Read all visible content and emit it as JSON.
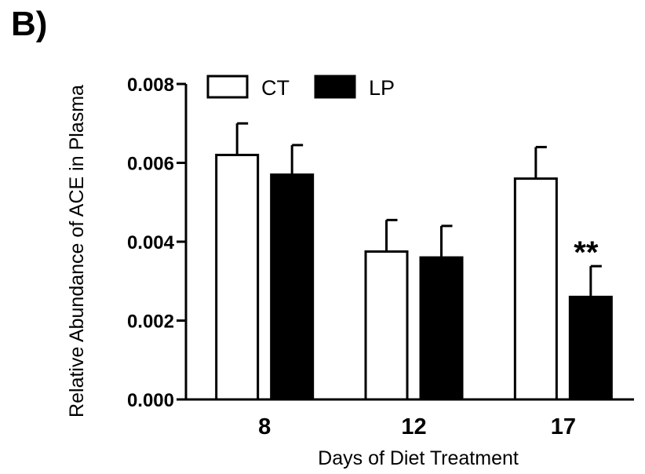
{
  "panel_label": "B)",
  "chart_data": {
    "type": "bar",
    "title": "",
    "xlabel": "Days of Diet Treatment",
    "ylabel": "Relative Abundance of ACE in Plasma",
    "categories": [
      "8",
      "12",
      "17"
    ],
    "ylim": [
      0,
      0.008
    ],
    "yticks": [
      "0.000",
      "0.002",
      "0.004",
      "0.006",
      "0.008"
    ],
    "ytick_values": [
      0,
      0.002,
      0.004,
      0.006,
      0.008
    ],
    "grid": false,
    "legend_position": "top-left",
    "series": [
      {
        "name": "CT",
        "values": [
          0.0062,
          0.00375,
          0.0056
        ],
        "errors": [
          0.0008,
          0.0008,
          0.0008
        ],
        "fill": "#ffffff"
      },
      {
        "name": "LP",
        "values": [
          0.0057,
          0.0036,
          0.0026
        ],
        "errors": [
          0.00075,
          0.0008,
          0.00078
        ],
        "fill": "#000000"
      }
    ],
    "annotations": [
      {
        "text": "**",
        "category_index": 2,
        "series_index": 1
      }
    ]
  }
}
